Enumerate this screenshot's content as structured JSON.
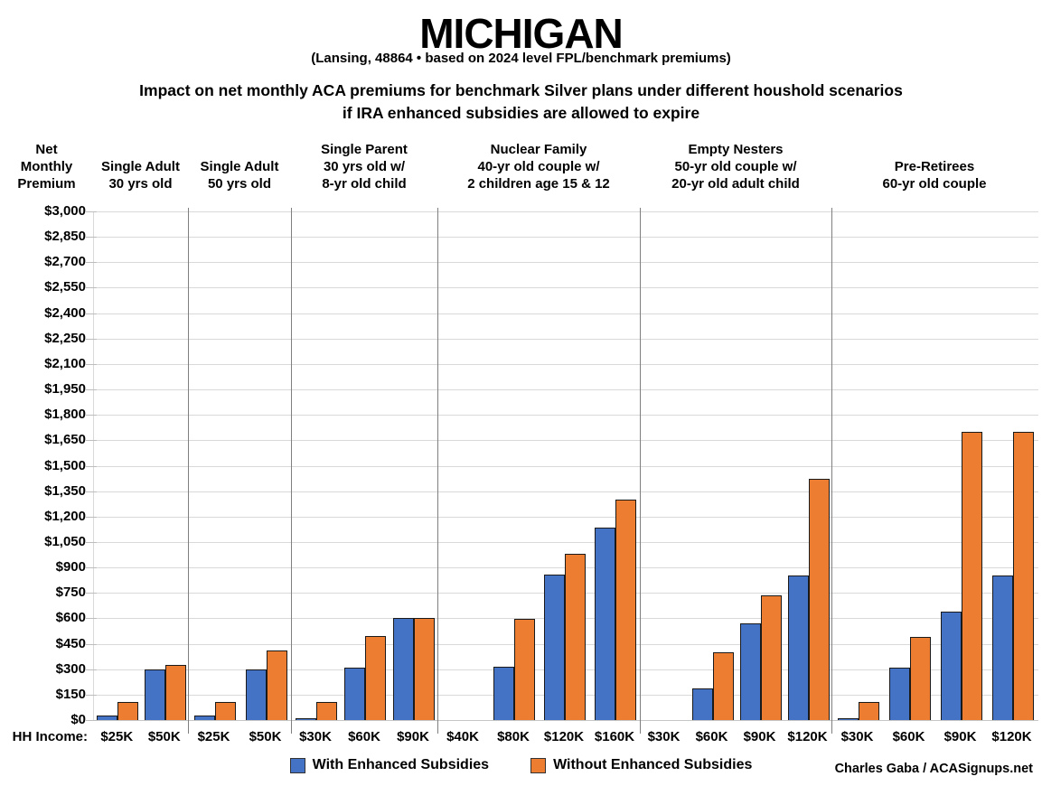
{
  "title": "MICHIGAN",
  "subtitle": "(Lansing, 48864 • based on 2024 level FPL/benchmark premiums)",
  "description_line1": "Impact on net monthly ACA premiums for benchmark Silver plans under different houshold scenarios",
  "description_line2": "if IRA enhanced subsidies are allowed to expire",
  "credit": "Charles Gaba / ACASignups.net",
  "chart_data": {
    "type": "bar",
    "title": "MICHIGAN",
    "y_axis_header_lines": [
      "Net",
      "Monthly",
      "Premium"
    ],
    "x_prefix": "HH Income:",
    "y_axis": {
      "min": 0,
      "max": 3000,
      "step": 150,
      "format": "$#,##0"
    },
    "grid": true,
    "legend_position": "bottom",
    "legend": [
      {
        "name": "With Enhanced Subsidies",
        "color": "#4472C4"
      },
      {
        "name": "Without Enhanced Subsidies",
        "color": "#ED7D31"
      }
    ],
    "groups": [
      {
        "header_lines": [
          "Single Adult",
          "30 yrs old"
        ],
        "categories": [
          "$25K",
          "$50K"
        ],
        "series": [
          {
            "name": "With Enhanced Subsidies",
            "values": [
              20,
              295
            ]
          },
          {
            "name": "Without Enhanced Subsidies",
            "values": [
              100,
              320
            ]
          }
        ]
      },
      {
        "header_lines": [
          "Single Adult",
          "50 yrs old"
        ],
        "categories": [
          "$25K",
          "$50K"
        ],
        "series": [
          {
            "name": "With Enhanced Subsidies",
            "values": [
              20,
              295
            ]
          },
          {
            "name": "Without Enhanced Subsidies",
            "values": [
              100,
              405
            ]
          }
        ]
      },
      {
        "header_lines": [
          "Single Parent",
          "30 yrs old w/",
          "8-yr old child"
        ],
        "categories": [
          "$30K",
          "$60K",
          "$90K"
        ],
        "series": [
          {
            "name": "With Enhanced Subsidies",
            "values": [
              5,
              305,
              595
            ]
          },
          {
            "name": "Without Enhanced Subsidies",
            "values": [
              100,
              490,
              595
            ]
          }
        ]
      },
      {
        "header_lines": [
          "Nuclear Family",
          "40-yr old couple w/",
          "2 children age 15 & 12"
        ],
        "categories": [
          "$40K",
          "$80K",
          "$120K",
          "$160K"
        ],
        "series": [
          {
            "name": "With Enhanced Subsidies",
            "values": [
              0,
              310,
              850,
              1130
            ]
          },
          {
            "name": "Without Enhanced Subsidies",
            "values": [
              0,
              590,
              975,
              1295
            ]
          }
        ]
      },
      {
        "header_lines": [
          "Empty Nesters",
          "50-yr old couple w/",
          "20-yr old adult child"
        ],
        "categories": [
          "$30K",
          "$60K",
          "$90K",
          "$120K"
        ],
        "series": [
          {
            "name": "With Enhanced Subsidies",
            "values": [
              0,
              180,
              565,
              845
            ]
          },
          {
            "name": "Without Enhanced Subsidies",
            "values": [
              0,
              395,
              730,
              1420
            ]
          }
        ]
      },
      {
        "header_lines": [
          "Pre-Retirees",
          "60-yr old couple"
        ],
        "categories": [
          "$30K",
          "$60K",
          "$90K",
          "$120K"
        ],
        "series": [
          {
            "name": "With Enhanced Subsidies",
            "values": [
              5,
              305,
              635,
              845
            ]
          },
          {
            "name": "Without Enhanced Subsidies",
            "values": [
              100,
              485,
              1695,
              1695
            ]
          }
        ]
      }
    ]
  }
}
